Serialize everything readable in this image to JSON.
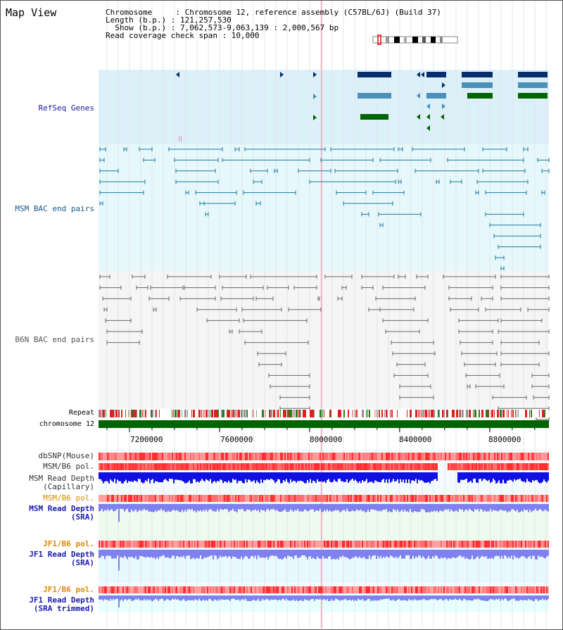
{
  "header": {
    "title": "Map View",
    "info_lines": [
      "Chromosome     : Chromosome 12, reference assembly (C57BL/6J) (Build 37)",
      "Length (b.p.) : 121,257,530",
      "  Show (b.p.) : 7,062,573-9,063,139 : 2,000,567 bp",
      "Read coverage check span : 10,000"
    ]
  },
  "tracks": {
    "refseq": "RefSeq Genes",
    "msm_bac": "MSM BAC end pairs",
    "b6n_bac": "B6N BAC end pairs",
    "repeat": "Repeat",
    "chromosome": "chromosome 12",
    "dbsnp": "dbSNP(Mouse)",
    "msm_b6_pol": "MSM/B6 pol.",
    "msm_depth_cap_1": "MSM Read Depth",
    "msm_depth_cap_2": "(Capillary)",
    "msm_b6_pol_2": "MSM/B6 pol.",
    "msm_depth_sra_1": "MSM Read Depth",
    "msm_depth_sra_2": "(SRA)",
    "jf1_pol_1": "JF1/B6 pol.",
    "jf1_depth_sra_1": "JF1 Read Depth",
    "jf1_depth_sra_2": "(SRA)",
    "jf1_pol_2": "JF1/B6 pol.",
    "jf1_depth_trim_1": "JF1 Read Depth",
    "jf1_depth_trim_2": "(SRA trimmed)"
  },
  "axis": {
    "range": [
      7062573,
      9063139
    ],
    "ticks": [
      {
        "value": 7200000,
        "label": "7200000"
      },
      {
        "value": 7600000,
        "label": "7600000"
      },
      {
        "value": 8000000,
        "label": "8000000"
      },
      {
        "value": 8400000,
        "label": "8400000"
      },
      {
        "value": 8800000,
        "label": "8800000"
      }
    ]
  },
  "colors": {
    "refseq_bg": "#dcf0fa",
    "msm_bg": "#e6f8fb",
    "b6n_bg": "#f5f5f5",
    "chromosome": "#006400",
    "gene_dark": "#0a2d6e",
    "gene_mid": "#4a90b8",
    "gene_green": "#006400",
    "msm_line": "#1a7aa0",
    "b6n_line": "#666666",
    "depth_blue": "#1010e0",
    "depth_light": "#8080f0",
    "snp_red": "#f04040"
  }
}
